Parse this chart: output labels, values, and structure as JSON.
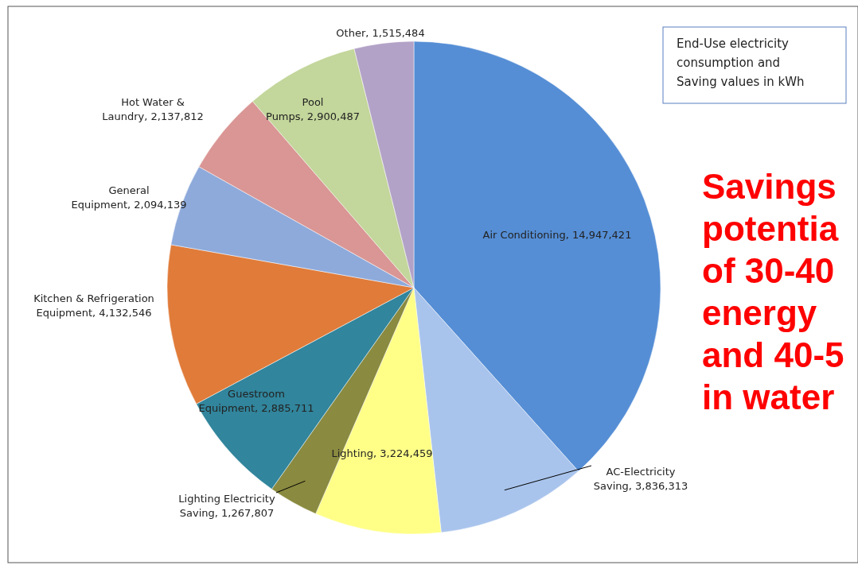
{
  "chart_data": {
    "type": "pie",
    "categories": [
      "Air Conditioning",
      "AC-Electricity Saving",
      "Lighting",
      "Lighting Electricity Saving",
      "Guestroom Equipment",
      "Kitchen & Refrigeration Equipment",
      "General Equipment",
      "Hot Water & Laundry",
      "Pool Pumps",
      "Other"
    ],
    "values": [
      14947421,
      3836313,
      3224459,
      1267807,
      2885711,
      4132546,
      2094139,
      2137812,
      2900487,
      1515484
    ],
    "value_labels": [
      "14,947,421",
      "3,836,313",
      "3,224,459",
      "1,267,807",
      "2,885,711",
      "4,132,546",
      "2,094,139",
      "2,137,812",
      "2,900,487",
      "1,515,484"
    ],
    "colors": [
      "#558ed5",
      "#a9c4ec",
      "#ffff88",
      "#8a8a40",
      "#31859c",
      "#e07b39",
      "#8eaadb",
      "#d99694",
      "#c3d69b",
      "#b3a2c7"
    ],
    "annotations": [
      "End-Use electricity consumption and Saving values in kWh",
      "Savings potentia of 30-40 energy and 40-5 in water"
    ]
  }
}
